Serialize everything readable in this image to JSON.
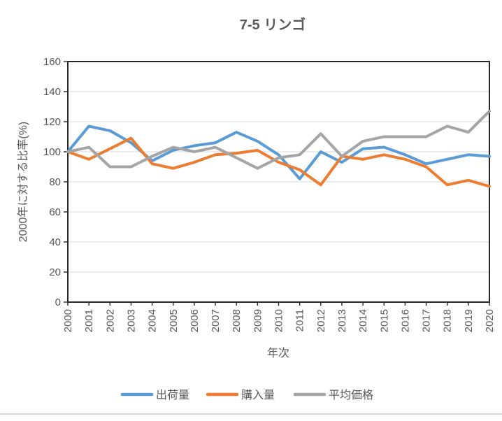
{
  "title": "7-5 リンゴ",
  "palette": {
    "background": "#FFFFFF",
    "axis": "#262626",
    "gridline": "#D9D9D9",
    "text": "#595959",
    "divider": "#D9D9D9"
  },
  "chart_data": {
    "type": "line",
    "title": "7-5 リンゴ",
    "xlabel": "年次",
    "ylabel": "2000年に対する比率(%)",
    "x": [
      2000,
      2001,
      2002,
      2003,
      2004,
      2005,
      2006,
      2007,
      2008,
      2009,
      2010,
      2011,
      2012,
      2013,
      2014,
      2015,
      2016,
      2017,
      2018,
      2019,
      2020
    ],
    "series": [
      {
        "name": "出荷量",
        "color": "#5B9BD5",
        "values": [
          100,
          117,
          114,
          106,
          94,
          101,
          104,
          106,
          113,
          107,
          98,
          82,
          100,
          93,
          102,
          103,
          98,
          92,
          95,
          98,
          97
        ]
      },
      {
        "name": "購入量",
        "color": "#ED7D31",
        "values": [
          100,
          95,
          102,
          109,
          92,
          89,
          93,
          98,
          99,
          101,
          93,
          88,
          78,
          97,
          95,
          98,
          95,
          90,
          78,
          81,
          77
        ]
      },
      {
        "name": "平均価格",
        "color": "#A5A5A5",
        "values": [
          100,
          103,
          90,
          90,
          97,
          103,
          100,
          103,
          96,
          89,
          96,
          98,
          112,
          97,
          107,
          110,
          110,
          110,
          117,
          113,
          127
        ]
      }
    ],
    "ylim": [
      0,
      160
    ],
    "ytick_step": 20,
    "yticks": [
      0,
      20,
      40,
      60,
      80,
      100,
      120,
      140,
      160
    ],
    "grid": true,
    "legend_position": "bottom"
  }
}
